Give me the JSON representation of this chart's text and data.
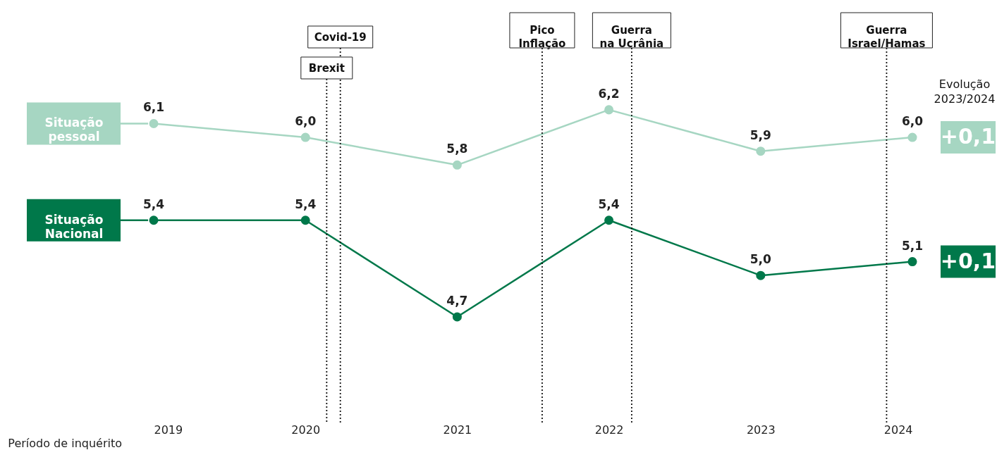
{
  "chart_data": {
    "type": "line",
    "x": [
      2019,
      2020,
      2021,
      2022,
      2023,
      2024
    ],
    "xlim": [
      2019,
      2024
    ],
    "xticks": [
      2019,
      2020,
      2021,
      2022,
      2023,
      2024
    ],
    "xlabel": "Período de inquérito",
    "tick_labels": "x",
    "series": [
      {
        "name": "Situação pessoal",
        "color": "#a6d6c2",
        "values": [
          6.1,
          6.0,
          5.8,
          6.2,
          5.9,
          6.0
        ],
        "value_labels": [
          "6,1",
          "6,0",
          "5,8",
          "6,2",
          "5,9",
          "6,0"
        ]
      },
      {
        "name": "Situação Nacional",
        "color": "#00784a",
        "values": [
          5.4,
          5.4,
          4.7,
          5.4,
          5.0,
          5.1
        ],
        "value_labels": [
          "5,4",
          "5,4",
          "4,7",
          "5,4",
          "5,0",
          "5,1"
        ]
      }
    ],
    "marker": "circle",
    "line_style": "solid",
    "grid": false,
    "legend": "left",
    "ref_lines": [
      {
        "axis": "x",
        "value": 2020.23,
        "label": "Covid-19",
        "line_style": "dotted"
      },
      {
        "axis": "x",
        "value": 2020.14,
        "label": "Brexit",
        "line_style": "dotted"
      },
      {
        "axis": "x",
        "value": 2021.56,
        "label": "Pico\nInflação",
        "line_style": "dotted"
      },
      {
        "axis": "x",
        "value": 2022.15,
        "label": "Guerra\nna Ucrânia",
        "line_style": "dotted"
      },
      {
        "axis": "x",
        "value": 2023.83,
        "label": "Guerra\nIsrael/Hamas",
        "line_style": "dotted"
      }
    ],
    "annotations": [
      {
        "text": "+0,1",
        "x": 2024,
        "y": 6.0
      },
      {
        "text": "+0,1",
        "x": 2024,
        "y": 5.1
      },
      "Evolução\n2023/2024"
    ]
  }
}
